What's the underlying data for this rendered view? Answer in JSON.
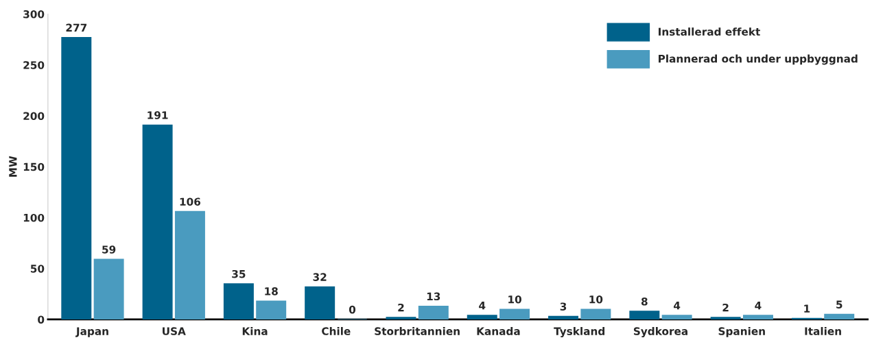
{
  "chart_data": {
    "type": "bar",
    "ylabel": "MW",
    "categories": [
      "Japan",
      "USA",
      "Kina",
      "Chile",
      "Storbritannien",
      "Kanada",
      "Tyskland",
      "Sydkorea",
      "Spanien",
      "Italien"
    ],
    "series": [
      {
        "name": "Installerad effekt",
        "color": "#00628b",
        "values": [
          277,
          191,
          35,
          32,
          2,
          4,
          3,
          8,
          2,
          1
        ]
      },
      {
        "name": "Plannerad och under uppbyggnad",
        "color": "#4a9bbf",
        "values": [
          59,
          106,
          18,
          0,
          13,
          10,
          10,
          4,
          4,
          5
        ]
      }
    ],
    "ylim": [
      0,
      300
    ],
    "yticks": [
      0,
      50,
      100,
      150,
      200,
      250,
      300
    ],
    "data_labels": true,
    "grid": false,
    "legend": "top right"
  }
}
